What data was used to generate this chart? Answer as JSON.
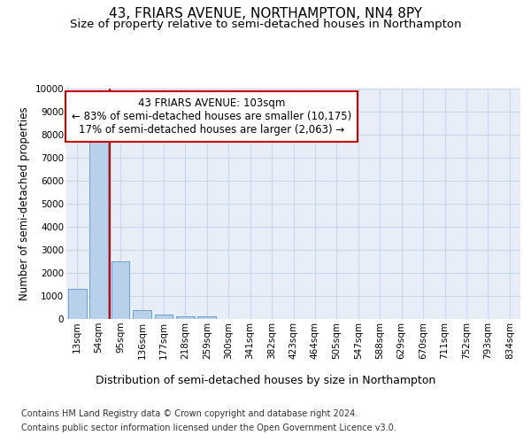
{
  "title": "43, FRIARS AVENUE, NORTHAMPTON, NN4 8PY",
  "subtitle": "Size of property relative to semi-detached houses in Northampton",
  "xlabel": "Distribution of semi-detached houses by size in Northampton",
  "ylabel": "Number of semi-detached properties",
  "footer_line1": "Contains HM Land Registry data © Crown copyright and database right 2024.",
  "footer_line2": "Contains public sector information licensed under the Open Government Licence v3.0.",
  "bin_labels": [
    "13sqm",
    "54sqm",
    "95sqm",
    "136sqm",
    "177sqm",
    "218sqm",
    "259sqm",
    "300sqm",
    "341sqm",
    "382sqm",
    "423sqm",
    "464sqm",
    "505sqm",
    "547sqm",
    "588sqm",
    "629sqm",
    "670sqm",
    "711sqm",
    "752sqm",
    "793sqm",
    "834sqm"
  ],
  "bar_heights": [
    1300,
    8000,
    2500,
    400,
    175,
    100,
    100,
    0,
    0,
    0,
    0,
    0,
    0,
    0,
    0,
    0,
    0,
    0,
    0,
    0,
    0
  ],
  "bar_color": "#b8d0ea",
  "bar_edgecolor": "#6aA0cc",
  "property_line_color": "#cc0000",
  "property_line_x": 1.5,
  "ylim": [
    0,
    10000
  ],
  "yticks": [
    0,
    1000,
    2000,
    3000,
    4000,
    5000,
    6000,
    7000,
    8000,
    9000,
    10000
  ],
  "annotation_line1": "43 FRIARS AVENUE: 103sqm",
  "annotation_line2": "← 83% of semi-detached houses are smaller (10,175)",
  "annotation_line3": "17% of semi-detached houses are larger (2,063) →",
  "annotation_box_color": "#cc0000",
  "annotation_fill": "#ffffff",
  "grid_color": "#c8d8ec",
  "background_color": "#e8eef8",
  "title_fontsize": 11,
  "subtitle_fontsize": 9.5,
  "ylabel_fontsize": 8.5,
  "xlabel_fontsize": 9,
  "tick_fontsize": 7.5,
  "annotation_fontsize": 8.5,
  "footer_fontsize": 7
}
